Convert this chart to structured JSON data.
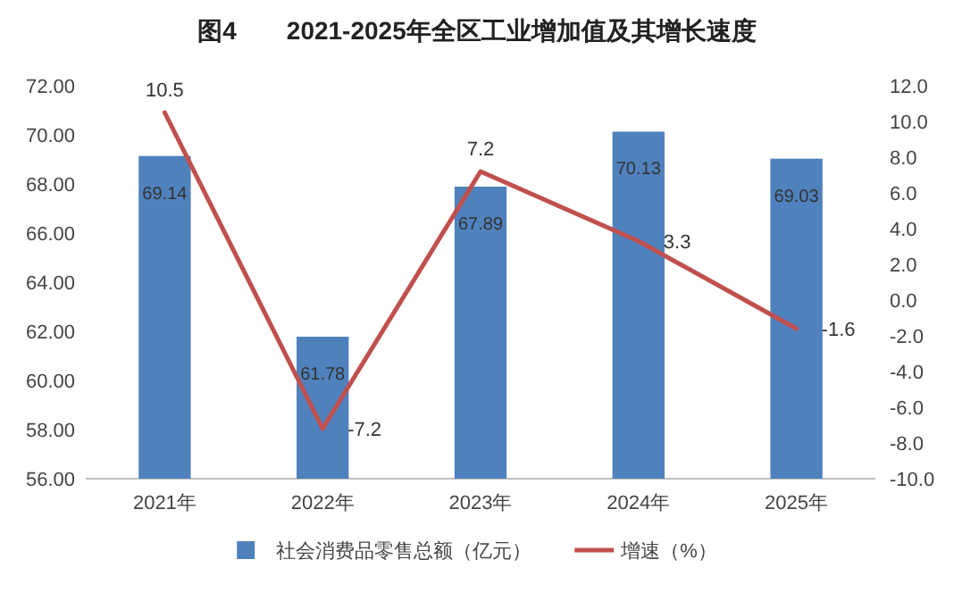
{
  "chart_data": {
    "type": "bar",
    "title": "图4　　2021-2025年全区工业增加值及其增长速度",
    "categories": [
      "2021年",
      "2022年",
      "2023年",
      "2024年",
      "2025年"
    ],
    "series": [
      {
        "name": "社会消费品零售总额（亿元）",
        "color": "#4f81bd",
        "values": [
          69.14,
          61.78,
          67.89,
          70.13,
          69.03
        ]
      },
      {
        "name": "增速（%）",
        "type": "line",
        "axis": "y2",
        "color": "#c0504d",
        "values": [
          10.5,
          -7.2,
          7.2,
          3.3,
          -1.6
        ]
      }
    ],
    "ylim": [
      56,
      72
    ],
    "yticks": [
      {
        "value": 56,
        "label": "56.00"
      },
      {
        "value": 58,
        "label": "58.00"
      },
      {
        "value": 60,
        "label": "60.00"
      },
      {
        "value": 62,
        "label": "62.00"
      },
      {
        "value": 64,
        "label": "64.00"
      },
      {
        "value": 66,
        "label": "66.00"
      },
      {
        "value": 68,
        "label": "68.00"
      },
      {
        "value": 70,
        "label": "70.00"
      },
      {
        "value": 72,
        "label": "72.00"
      }
    ],
    "y2lim": [
      -10,
      12
    ],
    "y2ticks": [
      {
        "value": -10,
        "label": "-10.0"
      },
      {
        "value": -8,
        "label": "-8.0"
      },
      {
        "value": -6,
        "label": "-6.0"
      },
      {
        "value": -4,
        "label": "-4.0"
      },
      {
        "value": -2,
        "label": "-2.0"
      },
      {
        "value": 0,
        "label": "0.0"
      },
      {
        "value": 2,
        "label": "2.0"
      },
      {
        "value": 4,
        "label": "4.0"
      },
      {
        "value": 6,
        "label": "6.0"
      },
      {
        "value": 8,
        "label": "8.0"
      },
      {
        "value": 10,
        "label": "10.0"
      },
      {
        "value": 12,
        "label": "12.0"
      }
    ],
    "data_labels": true,
    "legend": "bottom",
    "grid": false,
    "marker": "none",
    "line_style": "solid"
  }
}
